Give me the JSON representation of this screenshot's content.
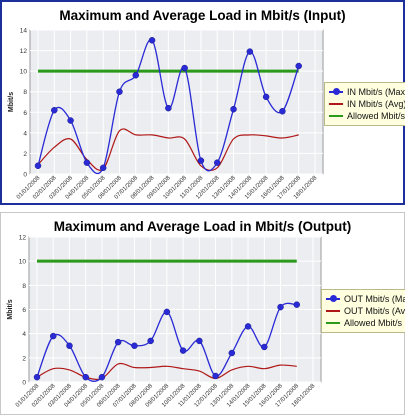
{
  "chart_data": [
    {
      "type": "line",
      "title": "Maximum and Average Load in Mbit/s (Input)",
      "ylabel": "Mbit/s",
      "xlabel": "",
      "ylim": [
        0,
        14
      ],
      "yticks": [
        0,
        2,
        4,
        6,
        8,
        10,
        12,
        14
      ],
      "grid": true,
      "legend_position": "right",
      "categories": [
        "01/01/2008",
        "02/01/2008",
        "03/01/2008",
        "04/01/2008",
        "05/01/2008",
        "06/01/2008",
        "07/01/2008",
        "08/01/2008",
        "09/01/2008",
        "10/01/2008",
        "11/01/2008",
        "12/01/2008",
        "13/01/2008",
        "14/01/2008",
        "15/01/2008",
        "16/01/2008",
        "17/01/2008",
        "18/01/2008"
      ],
      "series": [
        {
          "name": "IN Mbit/s (Max)",
          "color": "#2a2ad6",
          "markers": true,
          "values": [
            0.8,
            6.2,
            5.2,
            1.1,
            0.6,
            8.0,
            9.6,
            13.0,
            6.4,
            10.3,
            1.3,
            1.1,
            6.3,
            11.9,
            7.5,
            6.1,
            10.5,
            null
          ]
        },
        {
          "name": "IN Mbit/s (Avg)",
          "color": "#b01818",
          "markers": false,
          "values": [
            0.9,
            2.6,
            3.4,
            1.4,
            0.5,
            4.2,
            3.8,
            3.8,
            3.5,
            3.4,
            0.8,
            0.6,
            3.4,
            3.8,
            3.7,
            3.5,
            3.8,
            null
          ]
        },
        {
          "name": "Allowed Mbit/s",
          "color": "#2b9a1b",
          "markers": false,
          "values": [
            10,
            10,
            10,
            10,
            10,
            10,
            10,
            10,
            10,
            10,
            10,
            10,
            10,
            10,
            10,
            10,
            10,
            null
          ]
        }
      ]
    },
    {
      "type": "line",
      "title": "Maximum and Average Load in Mbit/s (Output)",
      "ylabel": "Mbit/s",
      "xlabel": "",
      "ylim": [
        0,
        12
      ],
      "yticks": [
        0,
        2,
        4,
        6,
        8,
        10,
        12
      ],
      "grid": true,
      "legend_position": "right",
      "categories": [
        "01/01/2008",
        "02/01/2008",
        "03/01/2008",
        "04/01/2008",
        "05/01/2008",
        "06/01/2008",
        "07/01/2008",
        "08/01/2008",
        "09/01/2008",
        "10/01/2008",
        "11/01/2008",
        "12/01/2008",
        "13/01/2008",
        "14/01/2008",
        "15/01/2008",
        "16/01/2008",
        "17/01/2008",
        "18/01/2008"
      ],
      "series": [
        {
          "name": "OUT Mbit/s (Max)",
          "color": "#2a2ad6",
          "markers": true,
          "values": [
            0.4,
            3.8,
            3.0,
            0.4,
            0.4,
            3.3,
            3.0,
            3.4,
            5.8,
            2.6,
            3.4,
            0.5,
            2.4,
            4.6,
            2.9,
            6.2,
            6.4,
            null
          ]
        },
        {
          "name": "OUT Mbit/s (Avg)",
          "color": "#b01818",
          "markers": false,
          "values": [
            0.4,
            1.1,
            1.0,
            0.4,
            0.3,
            1.5,
            1.2,
            1.2,
            1.3,
            1.1,
            0.9,
            0.3,
            1.0,
            1.3,
            1.1,
            1.4,
            1.3,
            null
          ]
        },
        {
          "name": "Allowed Mbit/s",
          "color": "#2b9a1b",
          "markers": false,
          "values": [
            10,
            10,
            10,
            10,
            10,
            10,
            10,
            10,
            10,
            10,
            10,
            10,
            10,
            10,
            10,
            10,
            10,
            null
          ]
        }
      ]
    }
  ]
}
